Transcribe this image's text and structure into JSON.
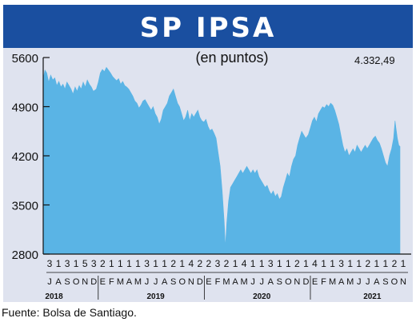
{
  "header": {
    "title": "SP IPSA",
    "subtitle": "(en puntos)"
  },
  "source": "Fuente: Bolsa de Santiago.",
  "chart_data": {
    "type": "area",
    "title": "SP IPSA",
    "subtitle": "(en puntos)",
    "ylim": [
      2800,
      5600
    ],
    "yticks": [
      2800,
      3500,
      4200,
      4900,
      5600
    ],
    "ytick_labels": [
      "2800",
      "3500",
      "4200",
      "4900",
      "5600"
    ],
    "last_value_label": "4.332,49",
    "last_value": 4332.49,
    "grid": false,
    "color": "#5ab4e5",
    "x_start": "2018-07-01",
    "x_end": "2021-11-12",
    "day_labels": [
      "3",
      "1",
      "3",
      "1",
      "5",
      "3",
      "2",
      "1",
      "1",
      "1",
      "1",
      "3",
      "1",
      "1",
      "2",
      "1",
      "4",
      "2",
      "2",
      "3",
      "2",
      "1",
      "4",
      "1",
      "1",
      "3",
      "1",
      "1",
      "2",
      "1",
      "4",
      "1",
      "1",
      "3",
      "1",
      "1",
      "2",
      "1",
      "1",
      "2",
      "1"
    ],
    "month_labels": [
      "J",
      "A",
      "S",
      "O",
      "N",
      "D",
      "E",
      "F",
      "M",
      "A",
      "M",
      "J",
      "J",
      "A",
      "S",
      "O",
      "N",
      "D",
      "E",
      "F",
      "M",
      "A",
      "M",
      "J",
      "J",
      "A",
      "S",
      "O",
      "N",
      "D",
      "E",
      "F",
      "M",
      "A",
      "M",
      "J",
      "J",
      "A",
      "S",
      "O",
      "N"
    ],
    "year_labels": [
      "2018",
      "2019",
      "2020",
      "2021"
    ],
    "series": [
      {
        "values": [
          [
            "2018-07-01",
            5300
          ],
          [
            "2018-07-07",
            5420
          ],
          [
            "2018-07-13",
            5380
          ],
          [
            "2018-07-20",
            5250
          ],
          [
            "2018-07-27",
            5350
          ],
          [
            "2018-08-03",
            5280
          ],
          [
            "2018-08-10",
            5310
          ],
          [
            "2018-08-17",
            5200
          ],
          [
            "2018-08-24",
            5260
          ],
          [
            "2018-08-31",
            5180
          ],
          [
            "2018-09-07",
            5220
          ],
          [
            "2018-09-14",
            5150
          ],
          [
            "2018-09-21",
            5250
          ],
          [
            "2018-09-28",
            5200
          ],
          [
            "2018-10-05",
            5150
          ],
          [
            "2018-10-12",
            5080
          ],
          [
            "2018-10-19",
            5180
          ],
          [
            "2018-10-26",
            5120
          ],
          [
            "2018-11-02",
            5200
          ],
          [
            "2018-11-09",
            5150
          ],
          [
            "2018-11-16",
            5250
          ],
          [
            "2018-11-23",
            5180
          ],
          [
            "2018-11-30",
            5280
          ],
          [
            "2018-12-07",
            5220
          ],
          [
            "2018-12-14",
            5180
          ],
          [
            "2018-12-21",
            5120
          ],
          [
            "2018-12-31",
            5150
          ],
          [
            "2019-01-07",
            5250
          ],
          [
            "2019-01-14",
            5380
          ],
          [
            "2019-01-21",
            5430
          ],
          [
            "2019-01-28",
            5400
          ],
          [
            "2019-02-04",
            5460
          ],
          [
            "2019-02-11",
            5420
          ],
          [
            "2019-02-18",
            5380
          ],
          [
            "2019-02-25",
            5330
          ],
          [
            "2019-03-04",
            5300
          ],
          [
            "2019-03-11",
            5270
          ],
          [
            "2019-03-18",
            5300
          ],
          [
            "2019-03-25",
            5220
          ],
          [
            "2019-04-01",
            5260
          ],
          [
            "2019-04-08",
            5200
          ],
          [
            "2019-04-15",
            5180
          ],
          [
            "2019-04-22",
            5150
          ],
          [
            "2019-04-29",
            5100
          ],
          [
            "2019-05-06",
            5050
          ],
          [
            "2019-05-13",
            4980
          ],
          [
            "2019-05-20",
            4950
          ],
          [
            "2019-05-27",
            4880
          ],
          [
            "2019-06-03",
            4920
          ],
          [
            "2019-06-10",
            4980
          ],
          [
            "2019-06-17",
            5000
          ],
          [
            "2019-06-24",
            4950
          ],
          [
            "2019-07-01",
            4900
          ],
          [
            "2019-07-08",
            4850
          ],
          [
            "2019-07-15",
            4900
          ],
          [
            "2019-07-22",
            4800
          ],
          [
            "2019-07-29",
            4750
          ],
          [
            "2019-08-05",
            4650
          ],
          [
            "2019-08-12",
            4720
          ],
          [
            "2019-08-19",
            4850
          ],
          [
            "2019-08-26",
            4900
          ],
          [
            "2019-09-02",
            4950
          ],
          [
            "2019-09-09",
            5050
          ],
          [
            "2019-09-16",
            5100
          ],
          [
            "2019-09-23",
            5150
          ],
          [
            "2019-09-30",
            5050
          ],
          [
            "2019-10-07",
            4950
          ],
          [
            "2019-10-14",
            4900
          ],
          [
            "2019-10-21",
            4800
          ],
          [
            "2019-10-28",
            4700
          ],
          [
            "2019-11-04",
            4750
          ],
          [
            "2019-11-11",
            4850
          ],
          [
            "2019-11-18",
            4700
          ],
          [
            "2019-11-25",
            4800
          ],
          [
            "2019-12-02",
            4750
          ],
          [
            "2019-12-09",
            4800
          ],
          [
            "2019-12-16",
            4850
          ],
          [
            "2019-12-23",
            4750
          ],
          [
            "2019-12-30",
            4700
          ],
          [
            "2020-01-06",
            4680
          ],
          [
            "2020-01-13",
            4720
          ],
          [
            "2020-01-20",
            4620
          ],
          [
            "2020-01-27",
            4560
          ],
          [
            "2020-02-03",
            4580
          ],
          [
            "2020-02-10",
            4520
          ],
          [
            "2020-02-17",
            4450
          ],
          [
            "2020-02-24",
            4250
          ],
          [
            "2020-03-02",
            4050
          ],
          [
            "2020-03-09",
            3700
          ],
          [
            "2020-03-16",
            3250
          ],
          [
            "2020-03-20",
            2900
          ],
          [
            "2020-03-25",
            3250
          ],
          [
            "2020-03-31",
            3550
          ],
          [
            "2020-04-07",
            3750
          ],
          [
            "2020-04-14",
            3800
          ],
          [
            "2020-04-21",
            3850
          ],
          [
            "2020-04-28",
            3900
          ],
          [
            "2020-05-05",
            3950
          ],
          [
            "2020-05-12",
            4000
          ],
          [
            "2020-05-19",
            3950
          ],
          [
            "2020-05-26",
            4000
          ],
          [
            "2020-06-02",
            4050
          ],
          [
            "2020-06-09",
            4000
          ],
          [
            "2020-06-16",
            3950
          ],
          [
            "2020-06-23",
            4000
          ],
          [
            "2020-06-30",
            3950
          ],
          [
            "2020-07-07",
            4000
          ],
          [
            "2020-07-14",
            3900
          ],
          [
            "2020-07-21",
            3850
          ],
          [
            "2020-07-28",
            3800
          ],
          [
            "2020-08-04",
            3750
          ],
          [
            "2020-08-11",
            3780
          ],
          [
            "2020-08-18",
            3700
          ],
          [
            "2020-08-25",
            3650
          ],
          [
            "2020-09-01",
            3700
          ],
          [
            "2020-09-08",
            3620
          ],
          [
            "2020-09-15",
            3660
          ],
          [
            "2020-09-22",
            3580
          ],
          [
            "2020-09-29",
            3620
          ],
          [
            "2020-10-06",
            3750
          ],
          [
            "2020-10-13",
            3850
          ],
          [
            "2020-10-20",
            3950
          ],
          [
            "2020-10-27",
            3900
          ],
          [
            "2020-11-03",
            4050
          ],
          [
            "2020-11-10",
            4150
          ],
          [
            "2020-11-17",
            4200
          ],
          [
            "2020-11-24",
            4350
          ],
          [
            "2020-12-01",
            4450
          ],
          [
            "2020-12-08",
            4550
          ],
          [
            "2020-12-15",
            4500
          ],
          [
            "2020-12-22",
            4450
          ],
          [
            "2020-12-31",
            4500
          ],
          [
            "2021-01-07",
            4600
          ],
          [
            "2021-01-14",
            4700
          ],
          [
            "2021-01-21",
            4750
          ],
          [
            "2021-01-28",
            4680
          ],
          [
            "2021-02-04",
            4800
          ],
          [
            "2021-02-11",
            4850
          ],
          [
            "2021-02-18",
            4900
          ],
          [
            "2021-02-25",
            4880
          ],
          [
            "2021-03-04",
            4930
          ],
          [
            "2021-03-11",
            4900
          ],
          [
            "2021-03-18",
            4950
          ],
          [
            "2021-03-25",
            4920
          ],
          [
            "2021-04-01",
            4850
          ],
          [
            "2021-04-08",
            4750
          ],
          [
            "2021-04-15",
            4650
          ],
          [
            "2021-04-22",
            4500
          ],
          [
            "2021-04-29",
            4350
          ],
          [
            "2021-05-06",
            4250
          ],
          [
            "2021-05-13",
            4300
          ],
          [
            "2021-05-20",
            4200
          ],
          [
            "2021-05-27",
            4250
          ],
          [
            "2021-06-03",
            4300
          ],
          [
            "2021-06-10",
            4250
          ],
          [
            "2021-06-17",
            4350
          ],
          [
            "2021-06-24",
            4300
          ],
          [
            "2021-07-01",
            4250
          ],
          [
            "2021-07-08",
            4300
          ],
          [
            "2021-07-15",
            4350
          ],
          [
            "2021-07-22",
            4300
          ],
          [
            "2021-07-29",
            4350
          ],
          [
            "2021-08-05",
            4400
          ],
          [
            "2021-08-12",
            4450
          ],
          [
            "2021-08-19",
            4480
          ],
          [
            "2021-08-26",
            4420
          ],
          [
            "2021-09-02",
            4380
          ],
          [
            "2021-09-09",
            4300
          ],
          [
            "2021-09-16",
            4200
          ],
          [
            "2021-09-23",
            4100
          ],
          [
            "2021-09-30",
            4050
          ],
          [
            "2021-10-07",
            4200
          ],
          [
            "2021-10-14",
            4300
          ],
          [
            "2021-10-21",
            4450
          ],
          [
            "2021-10-26",
            4700
          ],
          [
            "2021-10-29",
            4600
          ],
          [
            "2021-11-03",
            4450
          ],
          [
            "2021-11-08",
            4350
          ],
          [
            "2021-11-12",
            4332.49
          ]
        ]
      }
    ]
  }
}
